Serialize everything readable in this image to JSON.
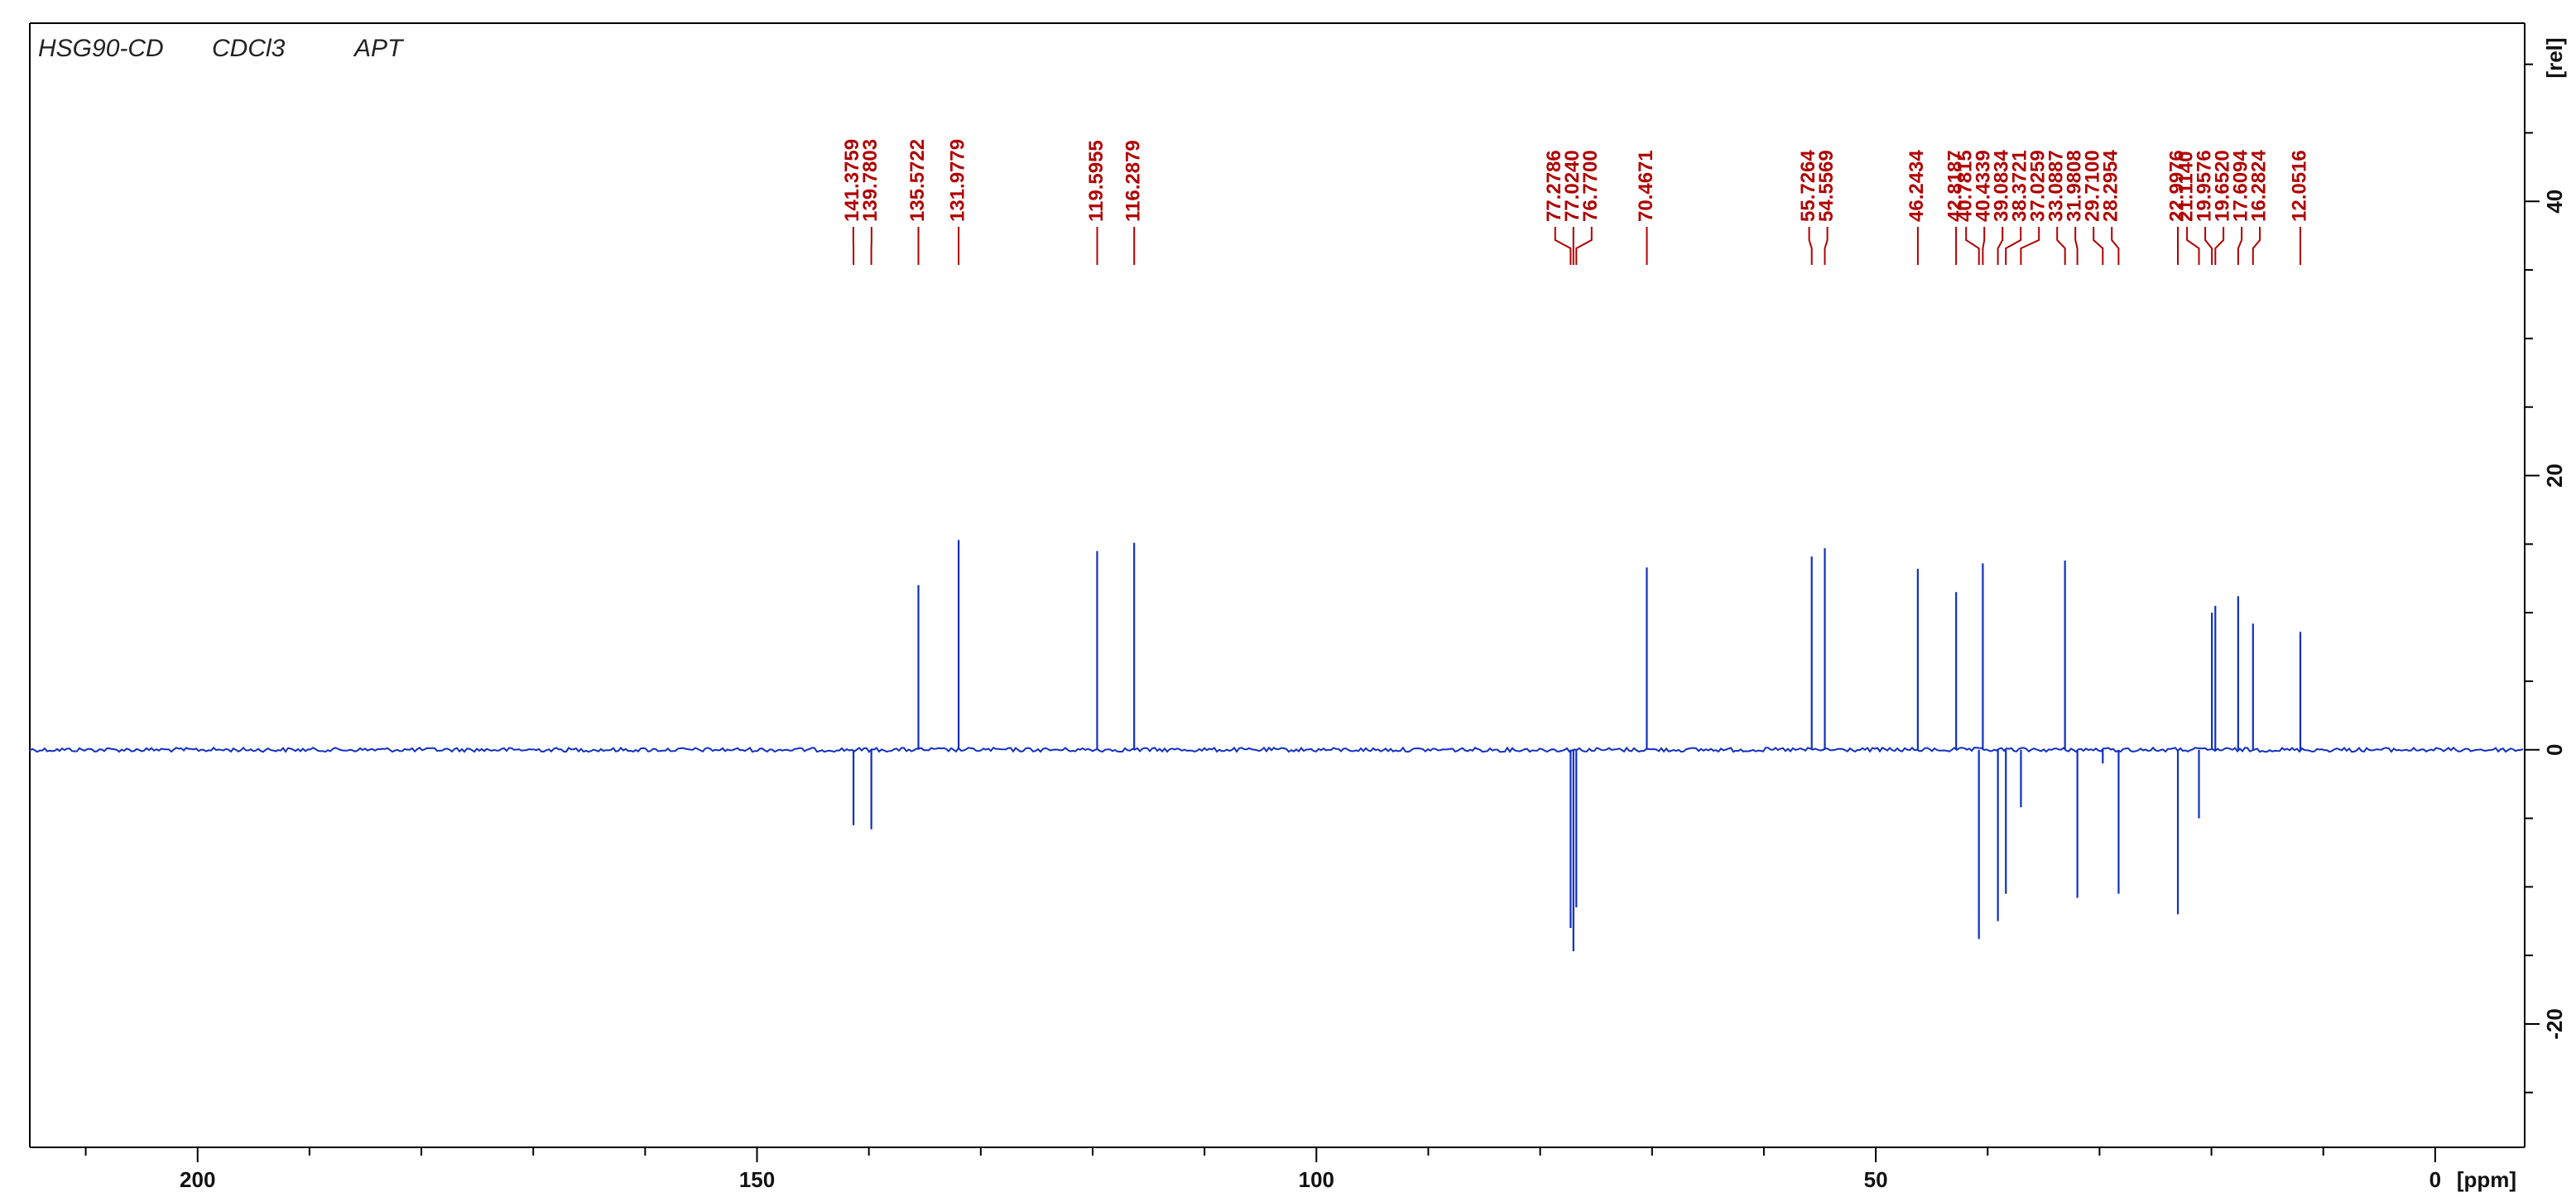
{
  "header": {
    "sample": "HSG90-CD",
    "solvent": "CDCl3",
    "experiment": "APT"
  },
  "colors": {
    "spectrum": "#1030c0",
    "peak_labels": "#b00000",
    "axes": "#000000"
  },
  "chart_data": {
    "type": "line",
    "title": "",
    "xlabel": "[ppm]",
    "ylabel": "[rel]",
    "x_reversed": true,
    "xlim": [
      215,
      -8
    ],
    "ylim": [
      -29,
      53
    ],
    "x_ticks": [
      200,
      150,
      100,
      50,
      0
    ],
    "x_tick_labels": [
      "200",
      "150",
      "100",
      "50",
      "0"
    ],
    "y_ticks": [
      40,
      20,
      0,
      -20
    ],
    "y_tick_labels": [
      "40",
      "20",
      "0",
      "-20"
    ],
    "peak_labels": [
      "141.3759",
      "139.7803",
      "135.5722",
      "131.9779",
      "119.5955",
      "116.2879",
      "77.2786",
      "77.0240",
      "76.7700",
      "70.4671",
      "55.7264",
      "54.5569",
      "46.2434",
      "42.8187",
      "40.7815",
      "40.4339",
      "39.0834",
      "38.3721",
      "37.0259",
      "33.0887",
      "31.9808",
      "29.7100",
      "28.2954",
      "22.9976",
      "21.1140",
      "19.9576",
      "19.6520",
      "17.6094",
      "16.2824",
      "12.0516"
    ],
    "peaks": [
      {
        "ppm": 141.3759,
        "intensity": -5.5
      },
      {
        "ppm": 139.7803,
        "intensity": -5.8
      },
      {
        "ppm": 135.5722,
        "intensity": 12.0
      },
      {
        "ppm": 131.9779,
        "intensity": 15.3
      },
      {
        "ppm": 119.5955,
        "intensity": 14.5
      },
      {
        "ppm": 116.2879,
        "intensity": 15.1
      },
      {
        "ppm": 77.2786,
        "intensity": -13.0
      },
      {
        "ppm": 77.024,
        "intensity": -14.7
      },
      {
        "ppm": 76.77,
        "intensity": -11.5
      },
      {
        "ppm": 70.4671,
        "intensity": 13.3
      },
      {
        "ppm": 55.7264,
        "intensity": 14.1
      },
      {
        "ppm": 54.5569,
        "intensity": 14.7
      },
      {
        "ppm": 46.2434,
        "intensity": 13.2
      },
      {
        "ppm": 42.8187,
        "intensity": 11.5
      },
      {
        "ppm": 40.7815,
        "intensity": -13.8
      },
      {
        "ppm": 40.4339,
        "intensity": 13.6
      },
      {
        "ppm": 39.0834,
        "intensity": -12.5
      },
      {
        "ppm": 38.3721,
        "intensity": -10.5
      },
      {
        "ppm": 37.0259,
        "intensity": -4.2
      },
      {
        "ppm": 33.0887,
        "intensity": 13.8
      },
      {
        "ppm": 31.9808,
        "intensity": -10.8
      },
      {
        "ppm": 29.71,
        "intensity": -1.0
      },
      {
        "ppm": 28.2954,
        "intensity": -10.5
      },
      {
        "ppm": 22.9976,
        "intensity": -12.0
      },
      {
        "ppm": 21.114,
        "intensity": -5.0
      },
      {
        "ppm": 19.9576,
        "intensity": 10.0
      },
      {
        "ppm": 19.652,
        "intensity": 10.5
      },
      {
        "ppm": 17.6094,
        "intensity": 11.2
      },
      {
        "ppm": 16.2824,
        "intensity": 9.2
      },
      {
        "ppm": 12.0516,
        "intensity": 8.6
      }
    ],
    "grid": false,
    "legend": "none"
  }
}
